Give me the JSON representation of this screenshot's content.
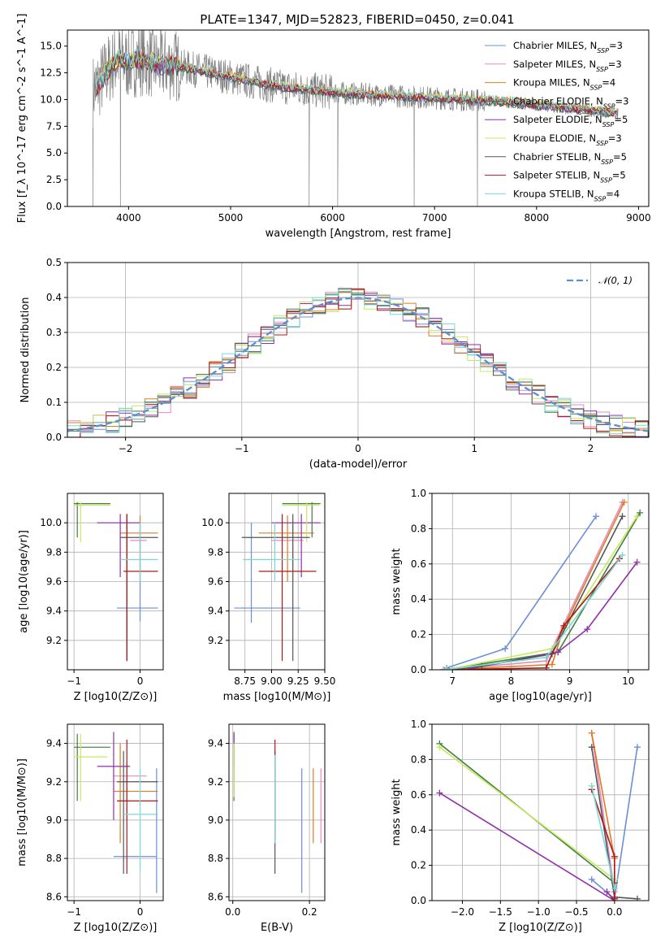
{
  "figure_title": "PLATE=1347, MJD=52823, FIBERID=0450, z=0.041",
  "models": [
    {
      "name": "Chabrier MILES, N_SSP=3",
      "color": "#6a8fd8"
    },
    {
      "name": "Salpeter MILES, N_SSP=3",
      "color": "#e48ac0"
    },
    {
      "name": "Kroupa MILES, N_SSP=4",
      "color": "#e07b22"
    },
    {
      "name": "Chabrier ELODIE, N_SSP=3",
      "color": "#3f7f3f"
    },
    {
      "name": "Salpeter ELODIE, N_SSP=5",
      "color": "#8e30a8"
    },
    {
      "name": "Kroupa ELODIE, N_SSP=3",
      "color": "#c8e860"
    },
    {
      "name": "Chabrier STELIB, N_SSP=5",
      "color": "#555555"
    },
    {
      "name": "Salpeter STELIB, N_SSP=5",
      "color": "#b01818"
    },
    {
      "name": "Kroupa STELIB, N_SSP=4",
      "color": "#7ad8d8"
    }
  ],
  "spectrum_color": "#808080",
  "chart_data": [
    {
      "id": "spectrum",
      "type": "line",
      "xlabel": "wavelength [Angstrom, rest frame]",
      "ylabel": "Flux [f_λ 10^-17 erg cm^-2 s^-1 A^-1]",
      "xlim": [
        3400,
        9100
      ],
      "ylim": [
        0,
        16.5
      ],
      "xticks": [
        4000,
        5000,
        6000,
        7000,
        8000,
        9000
      ],
      "yticks": [
        0.0,
        2.5,
        5.0,
        7.5,
        10.0,
        12.5,
        15.0
      ],
      "ytick_labels": [
        "0.0",
        "2.5",
        "5.0",
        "7.5",
        "10.0",
        "12.5",
        "15.0"
      ],
      "legend": "top-right",
      "continuum": [
        [
          3650,
          10.8
        ],
        [
          3700,
          11.4
        ],
        [
          3800,
          12.8
        ],
        [
          3900,
          13.8
        ],
        [
          4000,
          13.4
        ],
        [
          4100,
          13.8
        ],
        [
          4200,
          13.6
        ],
        [
          4300,
          13.2
        ],
        [
          4400,
          13.3
        ],
        [
          4500,
          13.1
        ],
        [
          4700,
          12.7
        ],
        [
          4900,
          12.3
        ],
        [
          5100,
          11.9
        ],
        [
          5300,
          11.5
        ],
        [
          5500,
          11.2
        ],
        [
          5700,
          11.0
        ],
        [
          5900,
          10.8
        ],
        [
          6100,
          10.6
        ],
        [
          6300,
          10.5
        ],
        [
          6500,
          10.4
        ],
        [
          6700,
          10.3
        ],
        [
          6900,
          10.2
        ],
        [
          7100,
          10.1
        ],
        [
          7300,
          10.0
        ],
        [
          7500,
          9.9
        ],
        [
          7700,
          9.8
        ],
        [
          7900,
          9.6
        ],
        [
          8100,
          9.4
        ],
        [
          8300,
          9.2
        ],
        [
          8500,
          9.0
        ],
        [
          8700,
          8.8
        ],
        [
          8800,
          8.7
        ]
      ],
      "gaps_at": [
        3650,
        3920,
        5770,
        6050,
        6800,
        7420
      ]
    },
    {
      "id": "residuals",
      "type": "histogram",
      "xlabel": "(data-model)/error",
      "ylabel": "Normed distribution",
      "xlim": [
        -2.5,
        2.5
      ],
      "ylim": [
        0,
        0.5
      ],
      "xticks": [
        -2,
        -1,
        0,
        1,
        2
      ],
      "xtick_labels": [
        "−2",
        "−1",
        "0",
        "1",
        "2"
      ],
      "yticks": [
        0.0,
        0.1,
        0.2,
        0.3,
        0.4,
        0.5
      ],
      "ytick_labels": [
        "0.0",
        "0.1",
        "0.2",
        "0.3",
        "0.4",
        "0.5"
      ],
      "legend": "top-right",
      "reference": "𝒩(0, 1)",
      "bin_width": 0.111
    },
    {
      "id": "age_vs_Z",
      "type": "errorbar",
      "xlabel": "Z [log10(Z/Z⊙)]",
      "ylabel": "age  [log10(age/yr)]",
      "xlim": [
        -1.1,
        0.35
      ],
      "ylim": [
        9.0,
        10.2
      ],
      "xticks": [
        -1,
        0
      ],
      "xtick_labels": [
        "−1",
        "0"
      ],
      "yticks": [
        9.2,
        9.4,
        9.6,
        9.8,
        10.0
      ],
      "ytick_labels": [
        "9.2",
        "9.4",
        "9.6",
        "9.8",
        "10.0"
      ],
      "points": [
        {
          "x": 0.0,
          "xlo": -0.35,
          "xhi": 0.27,
          "y": 9.42,
          "ylo": 9.33,
          "yhi": 10.0
        },
        {
          "x": 0.0,
          "xlo": -0.15,
          "xhi": 0.1,
          "y": 9.88,
          "ylo": 9.6,
          "yhi": 10.0
        },
        {
          "x": 0.0,
          "xlo": -0.3,
          "xhi": 0.27,
          "y": 9.93,
          "ylo": 9.6,
          "yhi": 10.05
        },
        {
          "x": -0.95,
          "xlo": -1.0,
          "xhi": -0.45,
          "y": 10.13,
          "ylo": 9.9,
          "yhi": 10.14
        },
        {
          "x": -0.3,
          "xlo": -0.65,
          "xhi": 0.0,
          "y": 10.0,
          "ylo": 9.63,
          "yhi": 10.06
        },
        {
          "x": -0.9,
          "xlo": -1.0,
          "xhi": -0.45,
          "y": 10.12,
          "ylo": 9.87,
          "yhi": 10.14
        },
        {
          "x": -0.2,
          "xlo": -0.3,
          "xhi": 0.27,
          "y": 9.9,
          "ylo": 9.06,
          "yhi": 10.06
        },
        {
          "x": -0.2,
          "xlo": -0.25,
          "xhi": 0.27,
          "y": 9.67,
          "ylo": 9.06,
          "yhi": 10.06
        },
        {
          "x": 0.0,
          "xlo": -0.3,
          "xhi": 0.27,
          "y": 9.75,
          "ylo": 9.6,
          "yhi": 10.0
        }
      ]
    },
    {
      "id": "age_vs_mass",
      "type": "errorbar",
      "xlabel": "mass [log10(M/M⊙)]",
      "xlim": [
        8.6,
        9.5
      ],
      "ylim": [
        9.0,
        10.2
      ],
      "xticks": [
        8.75,
        9.0,
        9.25,
        9.5
      ],
      "xtick_labels": [
        "8.75",
        "9.00",
        "9.25",
        "9.50"
      ],
      "yticks": [
        9.2,
        9.4,
        9.6,
        9.8,
        10.0
      ],
      "ytick_labels": [
        "9.2",
        "9.4",
        "9.6",
        "9.8",
        "10.0"
      ],
      "points": [
        {
          "x": 8.81,
          "xlo": 8.65,
          "xhi": 9.27,
          "y": 9.42,
          "ylo": 9.32,
          "yhi": 10.0
        },
        {
          "x": 9.2,
          "xlo": 9.0,
          "xhi": 9.3,
          "y": 9.88,
          "ylo": 9.6,
          "yhi": 10.0
        },
        {
          "x": 9.15,
          "xlo": 8.88,
          "xhi": 9.4,
          "y": 9.93,
          "ylo": 9.6,
          "yhi": 10.05
        },
        {
          "x": 9.38,
          "xlo": 9.1,
          "xhi": 9.46,
          "y": 10.13,
          "ylo": 9.9,
          "yhi": 10.14
        },
        {
          "x": 9.28,
          "xlo": 9.0,
          "xhi": 9.46,
          "y": 10.0,
          "ylo": 9.63,
          "yhi": 10.06
        },
        {
          "x": 9.33,
          "xlo": 9.1,
          "xhi": 9.45,
          "y": 10.12,
          "ylo": 9.87,
          "yhi": 10.14
        },
        {
          "x": 9.2,
          "xlo": 8.72,
          "xhi": 9.36,
          "y": 9.9,
          "ylo": 9.06,
          "yhi": 10.06
        },
        {
          "x": 9.1,
          "xlo": 8.88,
          "xhi": 9.42,
          "y": 9.67,
          "ylo": 9.06,
          "yhi": 10.06
        },
        {
          "x": 9.03,
          "xlo": 8.73,
          "xhi": 9.27,
          "y": 9.75,
          "ylo": 9.6,
          "yhi": 10.0
        }
      ]
    },
    {
      "id": "mass_weight_vs_age",
      "type": "line",
      "xlabel": "age  [log10(age/yr)]",
      "ylabel": "mass weight",
      "xlim": [
        6.65,
        10.35
      ],
      "ylim": [
        0,
        1.0
      ],
      "xticks": [
        7,
        8,
        9,
        10
      ],
      "yticks": [
        0.0,
        0.2,
        0.4,
        0.6,
        0.8,
        1.0
      ],
      "ytick_labels": [
        "0.0",
        "0.2",
        "0.4",
        "0.6",
        "0.8",
        "1.0"
      ],
      "series": [
        {
          "x": [
            6.9,
            7.9,
            9.45
          ],
          "y": [
            0.01,
            0.12,
            0.87
          ]
        },
        {
          "x": [
            6.85,
            8.6,
            9.9
          ],
          "y": [
            0.0,
            0.05,
            0.95
          ]
        },
        {
          "x": [
            6.9,
            8.7,
            8.9,
            9.93
          ],
          "y": [
            0.0,
            0.03,
            0.24,
            0.95
          ]
        },
        {
          "x": [
            6.85,
            8.8,
            10.2
          ],
          "y": [
            0.0,
            0.1,
            0.89
          ]
        },
        {
          "x": [
            7.2,
            8.8,
            9.3,
            10.15
          ],
          "y": [
            0.0,
            0.1,
            0.23,
            0.61
          ]
        },
        {
          "x": [
            6.9,
            8.7,
            10.15
          ],
          "y": [
            0.0,
            0.12,
            0.87
          ]
        },
        {
          "x": [
            6.85,
            7.5,
            8.7,
            9.9
          ],
          "y": [
            0.0,
            0.02,
            0.09,
            0.87
          ]
        },
        {
          "x": [
            6.85,
            8.6,
            8.9,
            9.85
          ],
          "y": [
            0.0,
            0.01,
            0.25,
            0.63
          ]
        },
        {
          "x": [
            6.85,
            8.6,
            9.9
          ],
          "y": [
            0.0,
            0.07,
            0.65
          ]
        }
      ]
    },
    {
      "id": "mass_vs_Z",
      "type": "errorbar",
      "xlabel": "Z [log10(Z/Z⊙)]",
      "ylabel": "mass [log10(M/M⊙)]",
      "xlim": [
        -1.1,
        0.35
      ],
      "ylim": [
        8.58,
        9.5
      ],
      "xticks": [
        -1,
        0
      ],
      "xtick_labels": [
        "−1",
        "0"
      ],
      "yticks": [
        8.6,
        8.8,
        9.0,
        9.2,
        9.4
      ],
      "ytick_labels": [
        "8.6",
        "8.8",
        "9.0",
        "9.2",
        "9.4"
      ],
      "points": [
        {
          "x": 0.25,
          "xlo": -0.4,
          "xhi": 0.25,
          "y": 8.81,
          "ylo": 8.62,
          "yhi": 9.27
        },
        {
          "x": -0.2,
          "xlo": -0.4,
          "xhi": 0.1,
          "y": 9.23,
          "ylo": 9.0,
          "yhi": 9.3
        },
        {
          "x": -0.3,
          "xlo": -0.4,
          "xhi": 0.27,
          "y": 9.15,
          "ylo": 8.88,
          "yhi": 9.4
        },
        {
          "x": -0.95,
          "xlo": -1.0,
          "xhi": -0.45,
          "y": 9.38,
          "ylo": 9.1,
          "yhi": 9.45
        },
        {
          "x": -0.4,
          "xlo": -0.65,
          "xhi": -0.15,
          "y": 9.28,
          "ylo": 9.0,
          "yhi": 9.46
        },
        {
          "x": -0.9,
          "xlo": -1.0,
          "xhi": -0.5,
          "y": 9.33,
          "ylo": 9.1,
          "yhi": 9.45
        },
        {
          "x": -0.25,
          "xlo": -0.35,
          "xhi": 0.27,
          "y": 9.2,
          "ylo": 8.72,
          "yhi": 9.36
        },
        {
          "x": -0.2,
          "xlo": -0.35,
          "xhi": 0.27,
          "y": 9.1,
          "ylo": 8.72,
          "yhi": 9.42
        },
        {
          "x": 0.0,
          "xlo": -0.25,
          "xhi": 0.27,
          "y": 9.03,
          "ylo": 8.73,
          "yhi": 9.27
        }
      ]
    },
    {
      "id": "mass_vs_ebv",
      "type": "errorbar",
      "xlabel": "E(B-V)",
      "xlim": [
        -0.01,
        0.24
      ],
      "ylim": [
        8.58,
        9.5
      ],
      "xticks": [
        0.0,
        0.2
      ],
      "xtick_labels": [
        "0.0",
        "0.2"
      ],
      "yticks": [
        8.6,
        8.8,
        9.0,
        9.2,
        9.4
      ],
      "ytick_labels": [
        "8.6",
        "8.8",
        "9.0",
        "9.2",
        "9.4"
      ],
      "points": [
        {
          "x": 0.18,
          "ylo": 8.62,
          "yhi": 9.27
        },
        {
          "x": 0.23,
          "ylo": 8.88,
          "yhi": 9.27
        },
        {
          "x": 0.21,
          "ylo": 8.88,
          "yhi": 9.27
        },
        {
          "x": 0.003,
          "ylo": 9.1,
          "yhi": 9.45
        },
        {
          "x": 0.003,
          "ylo": 9.28,
          "yhi": 9.46
        },
        {
          "x": 0.003,
          "ylo": 9.12,
          "yhi": 9.4
        },
        {
          "x": 0.11,
          "ylo": 8.72,
          "yhi": 9.36
        },
        {
          "x": 0.11,
          "ylo": 8.9,
          "yhi": 9.42
        },
        {
          "x": 0.11,
          "ylo": 8.88,
          "yhi": 9.34
        }
      ]
    },
    {
      "id": "mass_weight_vs_Z",
      "type": "line",
      "xlabel": "Z [log10(Z/Z⊙)]",
      "ylabel": "mass weight",
      "xlim": [
        -2.4,
        0.45
      ],
      "ylim": [
        0,
        1.0
      ],
      "xticks": [
        -2.0,
        -1.5,
        -1.0,
        -0.5,
        0.0
      ],
      "xtick_labels": [
        "−2.0",
        "−1.5",
        "−1.0",
        "−0.5",
        "0.0"
      ],
      "yticks": [
        0.0,
        0.2,
        0.4,
        0.6,
        0.8,
        1.0
      ],
      "ytick_labels": [
        "0.0",
        "0.2",
        "0.4",
        "0.6",
        "0.8",
        "1.0"
      ],
      "series": [
        {
          "x": [
            -0.3,
            0.0,
            0.3
          ],
          "y": [
            0.12,
            0.01,
            0.87
          ]
        },
        {
          "x": [
            -0.3,
            0.0
          ],
          "y": [
            0.95,
            0.05
          ]
        },
        {
          "x": [
            -0.3,
            0.0,
            0.0
          ],
          "y": [
            0.95,
            0.24,
            0.0
          ]
        },
        {
          "x": [
            -2.3,
            0.0
          ],
          "y": [
            0.89,
            0.1
          ]
        },
        {
          "x": [
            -2.3,
            0.0,
            -0.1
          ],
          "y": [
            0.61,
            0.0,
            0.05
          ]
        },
        {
          "x": [
            -2.3,
            0.0
          ],
          "y": [
            0.87,
            0.12
          ]
        },
        {
          "x": [
            -0.3,
            0.0,
            0.3
          ],
          "y": [
            0.87,
            0.02,
            0.01
          ]
        },
        {
          "x": [
            -0.3,
            0.0,
            0.0
          ],
          "y": [
            0.63,
            0.25,
            0.01
          ]
        },
        {
          "x": [
            -0.3,
            0.0
          ],
          "y": [
            0.65,
            0.07
          ]
        }
      ]
    }
  ]
}
